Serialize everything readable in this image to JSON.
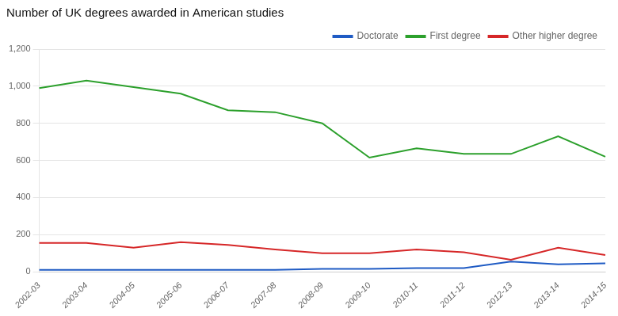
{
  "chart_data": {
    "type": "line",
    "title": "Number of UK degrees awarded in American studies",
    "categories": [
      "2002-03",
      "2003-04",
      "2004-05",
      "2005-06",
      "2006-07",
      "2007-08",
      "2008-09",
      "2009-10",
      "2010-11",
      "2011-12",
      "2012-13",
      "2013-14",
      "2014-15"
    ],
    "series": [
      {
        "name": "Doctorate",
        "color": "#1f5bc4",
        "values": [
          10,
          10,
          10,
          10,
          10,
          10,
          15,
          15,
          20,
          20,
          55,
          40,
          45
        ]
      },
      {
        "name": "First degree",
        "color": "#2ca02c",
        "values": [
          990,
          1030,
          995,
          960,
          870,
          860,
          800,
          615,
          665,
          635,
          635,
          730,
          620
        ]
      },
      {
        "name": "Other higher degree",
        "color": "#d62728",
        "values": [
          155,
          155,
          130,
          160,
          145,
          120,
          100,
          100,
          120,
          105,
          65,
          130,
          90
        ]
      }
    ],
    "ylim": [
      0,
      1200
    ],
    "yticks": [
      0,
      200,
      400,
      600,
      800,
      {
        "value": 1000,
        "label": "1,000"
      },
      {
        "value": 1200,
        "label": "1,200"
      }
    ],
    "grid": "y",
    "legend": "upper right"
  }
}
